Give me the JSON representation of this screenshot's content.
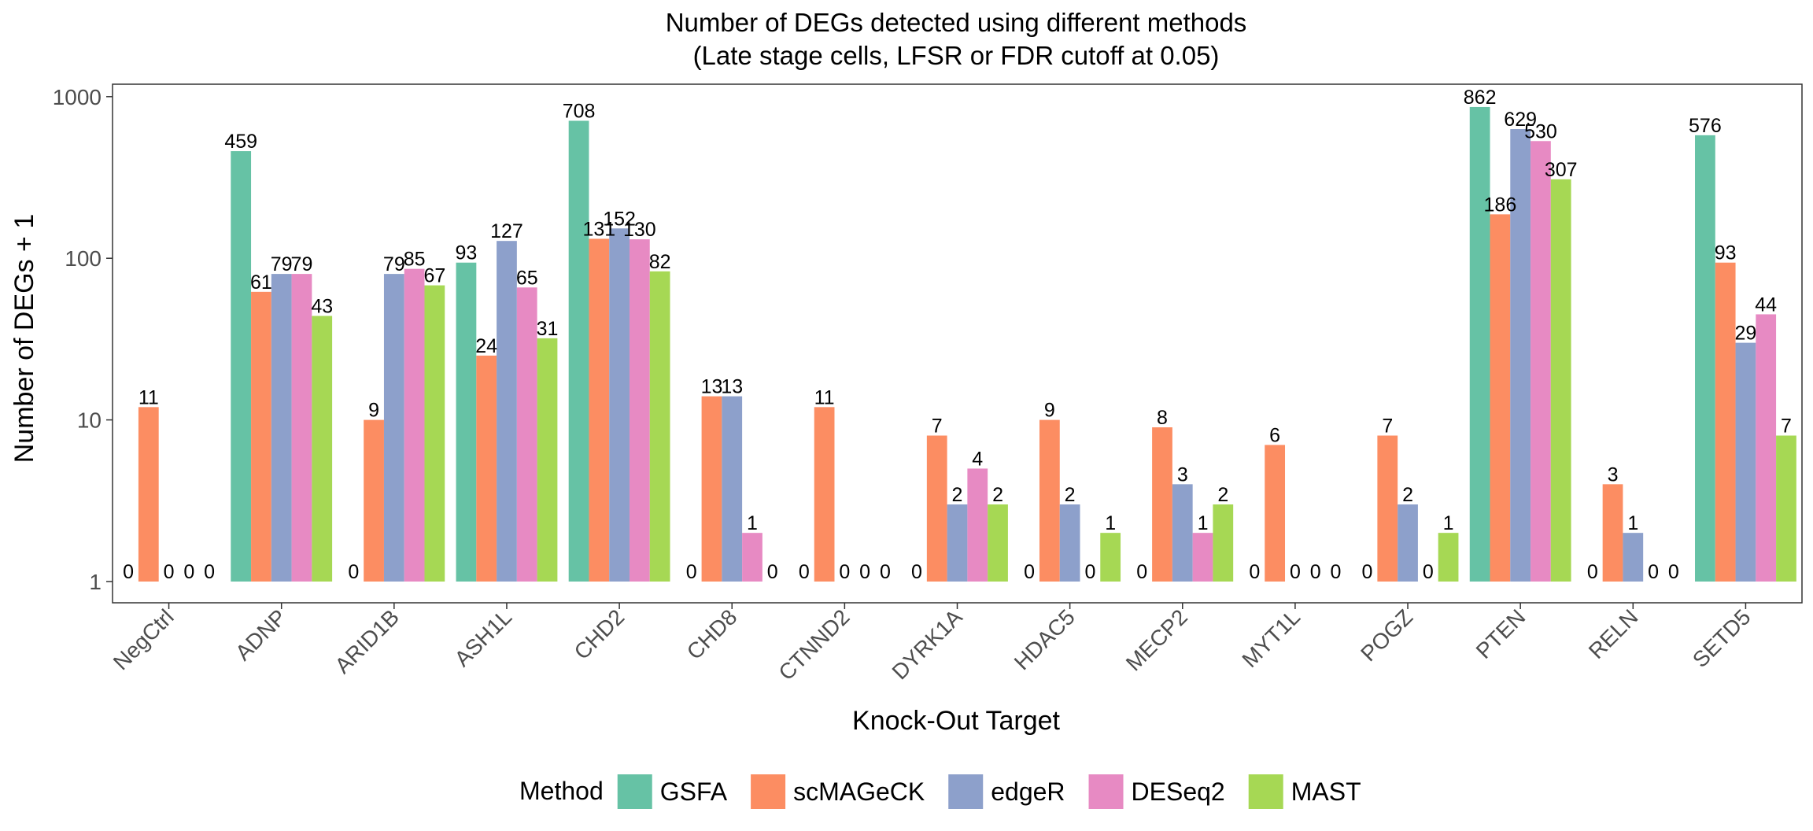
{
  "chart_data": {
    "type": "bar",
    "title": "Number of DEGs detected using different methods",
    "subtitle": "(Late stage cells, LFSR or FDR cutoff at 0.05)",
    "xlabel": "Knock-Out Target",
    "ylabel": "Number of DEGs + 1",
    "y_scale": "log10",
    "ylim": [
      1,
      1000
    ],
    "yticks": [
      "1",
      "10",
      "100",
      "1000"
    ],
    "grid": true,
    "legend": {
      "title": "Method",
      "position": "bottom"
    },
    "categories": [
      "NegCtrl",
      "ADNP",
      "ARID1B",
      "ASH1L",
      "CHD2",
      "CHD8",
      "CTNND2",
      "DYRK1A",
      "HDAC5",
      "MECP2",
      "MYT1L",
      "POGZ",
      "PTEN",
      "RELN",
      "SETD5"
    ],
    "series": [
      {
        "name": "GSFA",
        "color": "#66c2a5",
        "values": [
          0,
          459,
          0,
          93,
          708,
          0,
          0,
          0,
          0,
          0,
          0,
          0,
          862,
          0,
          576
        ]
      },
      {
        "name": "scMAGeCK",
        "color": "#fc8d62",
        "values": [
          11,
          61,
          9,
          24,
          131,
          13,
          11,
          7,
          9,
          8,
          6,
          7,
          186,
          3,
          93
        ]
      },
      {
        "name": "edgeR",
        "color": "#8da0cb",
        "values": [
          0,
          79,
          79,
          127,
          152,
          13,
          0,
          2,
          2,
          3,
          0,
          2,
          629,
          1,
          29
        ]
      },
      {
        "name": "DESeq2",
        "color": "#e78ac3",
        "values": [
          0,
          79,
          85,
          65,
          130,
          1,
          0,
          4,
          0,
          1,
          0,
          0,
          530,
          0,
          44
        ]
      },
      {
        "name": "MAST",
        "color": "#a6d854",
        "values": [
          0,
          43,
          67,
          31,
          82,
          0,
          0,
          2,
          1,
          2,
          0,
          1,
          307,
          0,
          7
        ]
      }
    ]
  }
}
